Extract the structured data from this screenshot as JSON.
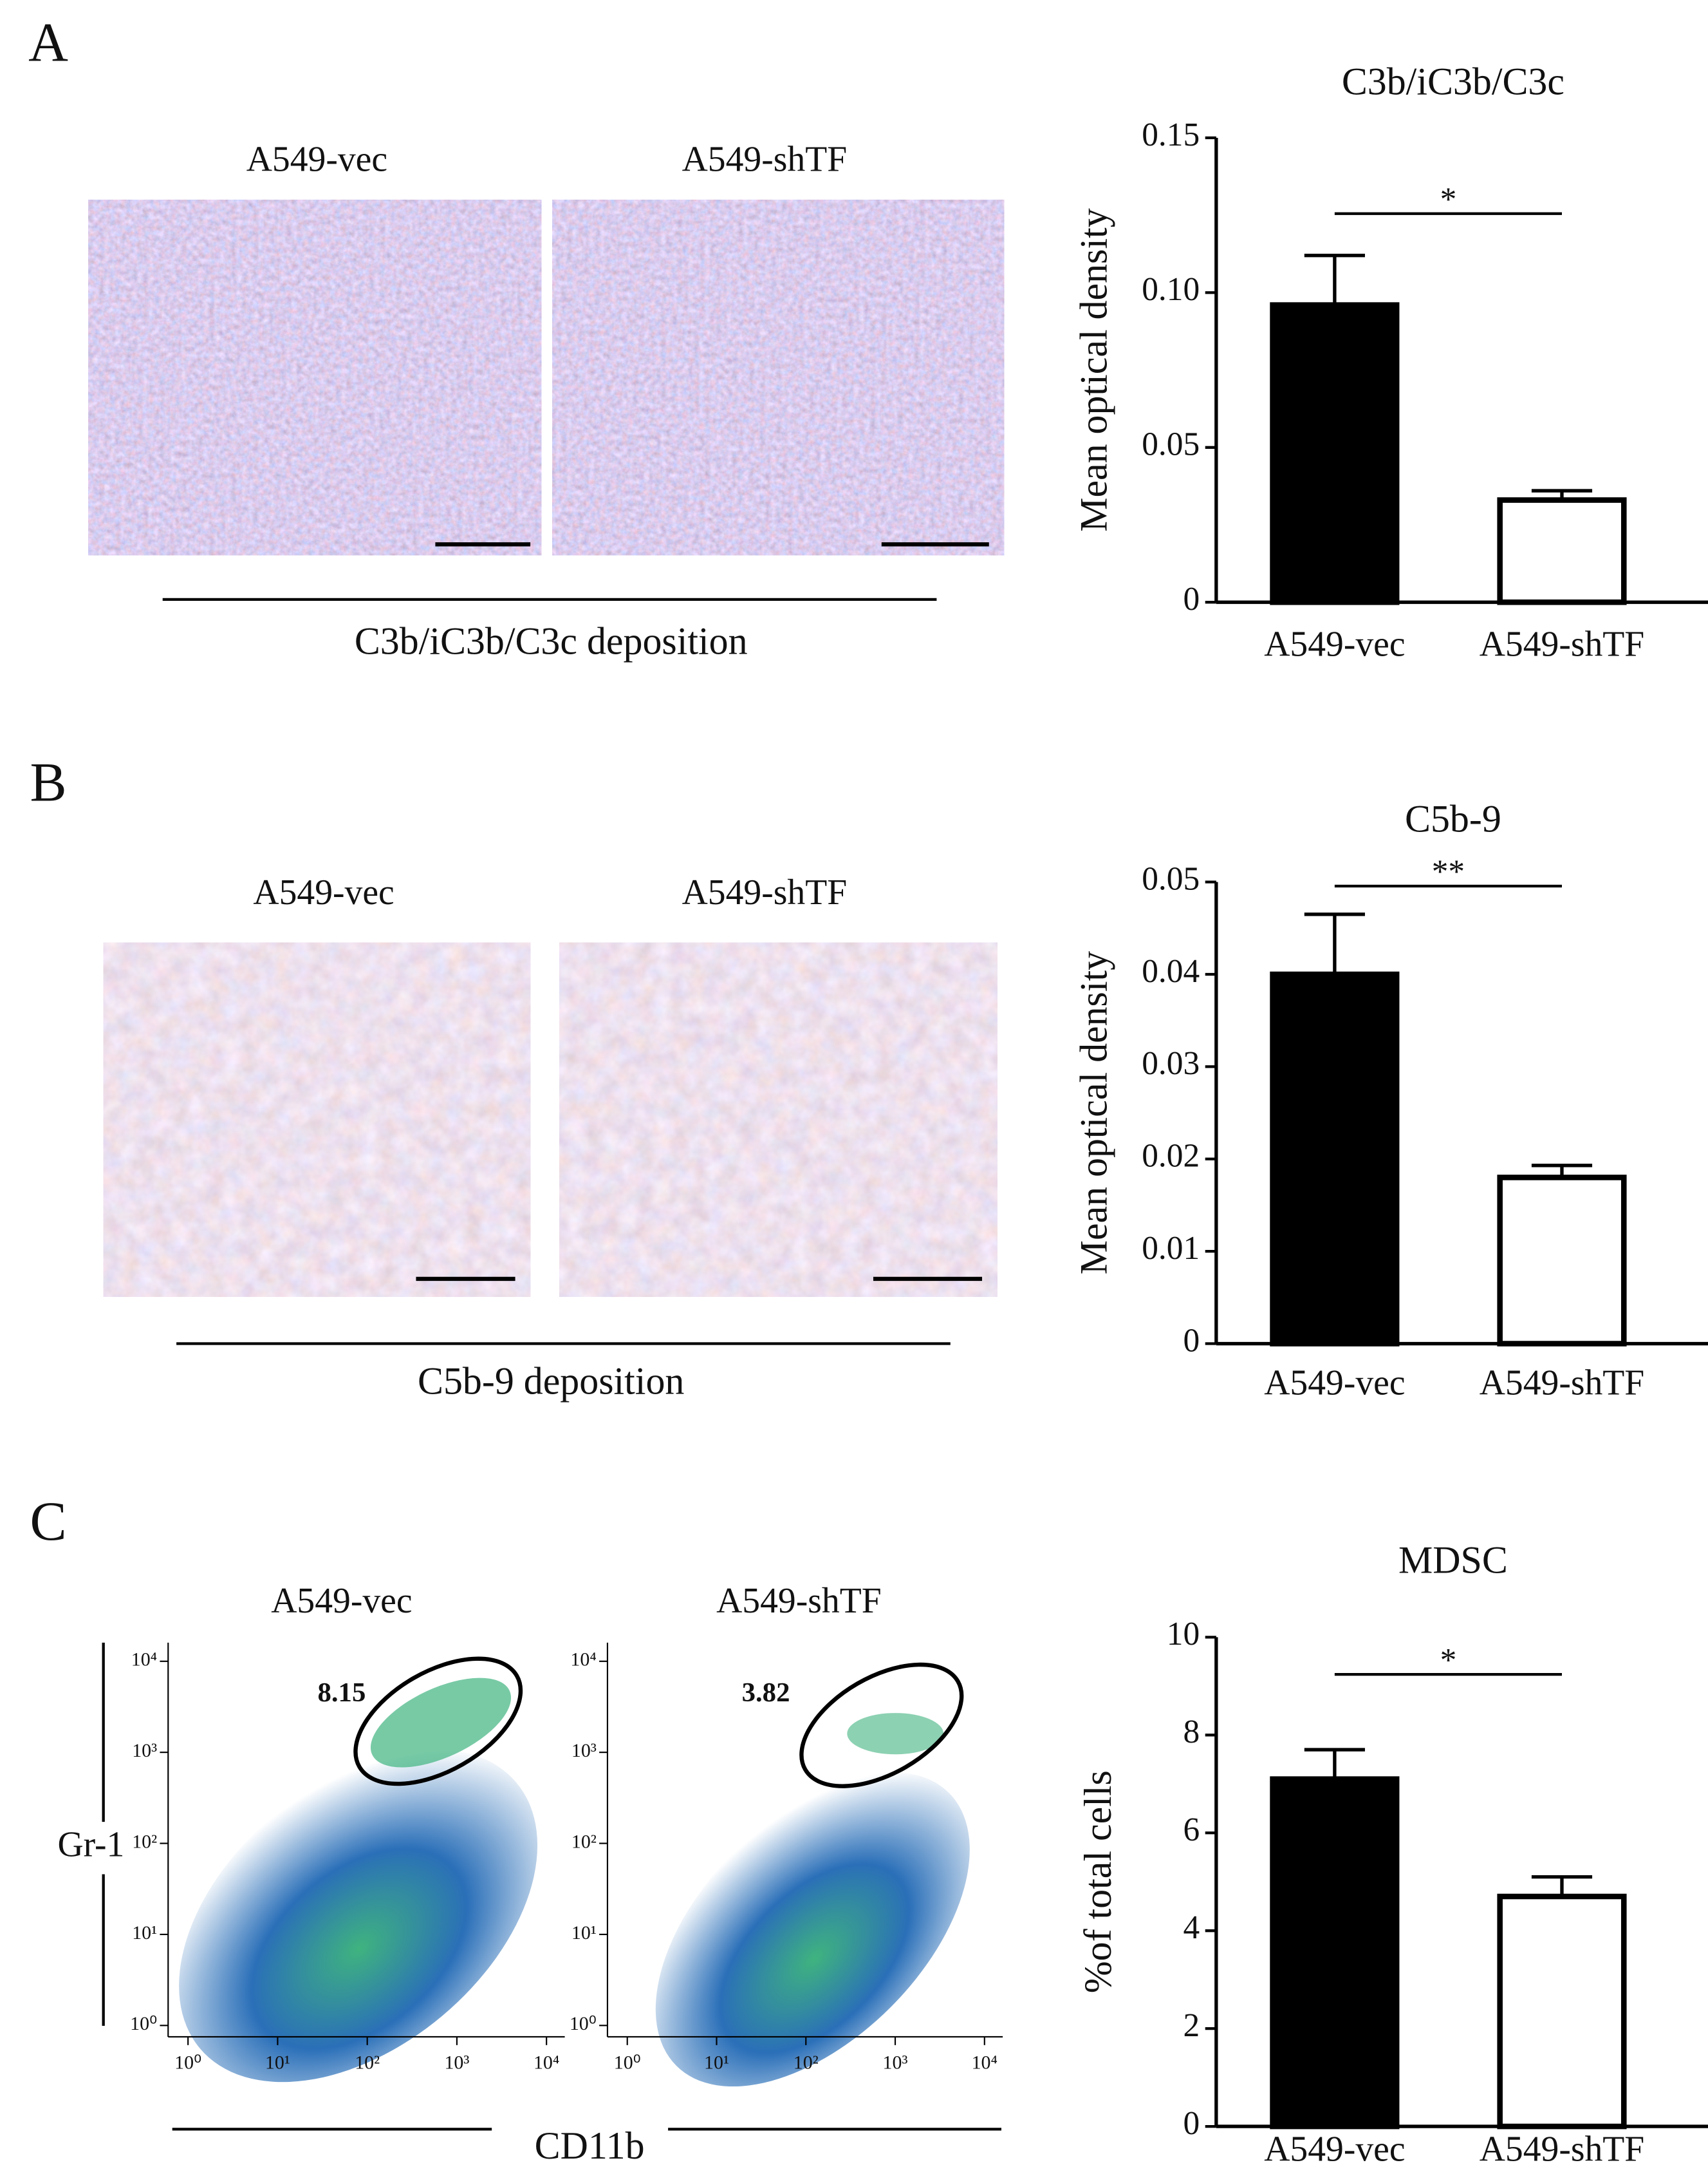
{
  "panel_labels": [
    "A",
    "B",
    "C"
  ],
  "figures": [
    {
      "left_label": "A549-vec",
      "right_label": "A549-shTF",
      "caption": "C3b/iC3b/C3c deposition"
    },
    {
      "left_label": "A549-vec",
      "right_label": "A549-shTF",
      "caption": "C5b-9 deposition"
    }
  ],
  "flow": {
    "left_label": "A549-vec",
    "right_label": "A549-shTF",
    "x_label": "CD11b",
    "y_label": "Gr-1",
    "gate_values": [
      8.15,
      3.82
    ],
    "log_scale": true,
    "xlim": [
      0.6,
      16000
    ],
    "ylim": [
      0.75,
      16000
    ],
    "xticks": [
      {
        "value": 1,
        "label": "10⁰"
      },
      {
        "value": 10,
        "label": "10¹"
      },
      {
        "value": 100,
        "label": "10²"
      },
      {
        "value": 1000,
        "label": "10³"
      },
      {
        "value": 10000,
        "label": "10⁴"
      }
    ],
    "yticks": [
      {
        "value": 1,
        "label": "10⁰"
      },
      {
        "value": 10,
        "label": "10¹"
      },
      {
        "value": 100,
        "label": "10²"
      },
      {
        "value": 1000,
        "label": "10³"
      },
      {
        "value": 10000,
        "label": "10⁴"
      }
    ]
  },
  "chart_data": [
    {
      "type": "bar",
      "title": "C3b/iC3b/C3c",
      "y_label": "Mean optical density",
      "categories": [
        "A549-vec",
        "A549-shTF"
      ],
      "values": [
        0.096,
        0.033
      ],
      "errors": [
        0.016,
        0.003
      ],
      "colors": [
        "#000000",
        "#ffffff"
      ],
      "significance": "*",
      "ylim": [
        0,
        0.15
      ],
      "yticks": [
        0,
        0.05,
        {
          "value": 0.1,
          "label": "0.10"
        },
        0.15
      ]
    },
    {
      "type": "bar",
      "title": "C5b-9",
      "y_label": "Mean optical density",
      "categories": [
        "A549-vec",
        "A549-shTF"
      ],
      "values": [
        0.04,
        0.018
      ],
      "errors": [
        0.0065,
        0.0013
      ],
      "colors": [
        "#000000",
        "#ffffff"
      ],
      "significance": "**",
      "ylim": [
        0,
        0.05
      ],
      "yticks": [
        0,
        0.01,
        0.02,
        0.03,
        0.04,
        0.05
      ]
    },
    {
      "type": "bar",
      "title": "MDSC",
      "y_label": "%of total cells",
      "categories": [
        "A549-vec",
        "A549-shTF"
      ],
      "values": [
        7.1,
        4.7
      ],
      "errors": [
        0.6,
        0.4
      ],
      "colors": [
        "#000000",
        "#ffffff"
      ],
      "significance": "*",
      "ylim": [
        0,
        10
      ],
      "yticks": [
        0,
        2,
        4,
        6,
        8,
        10
      ]
    }
  ]
}
